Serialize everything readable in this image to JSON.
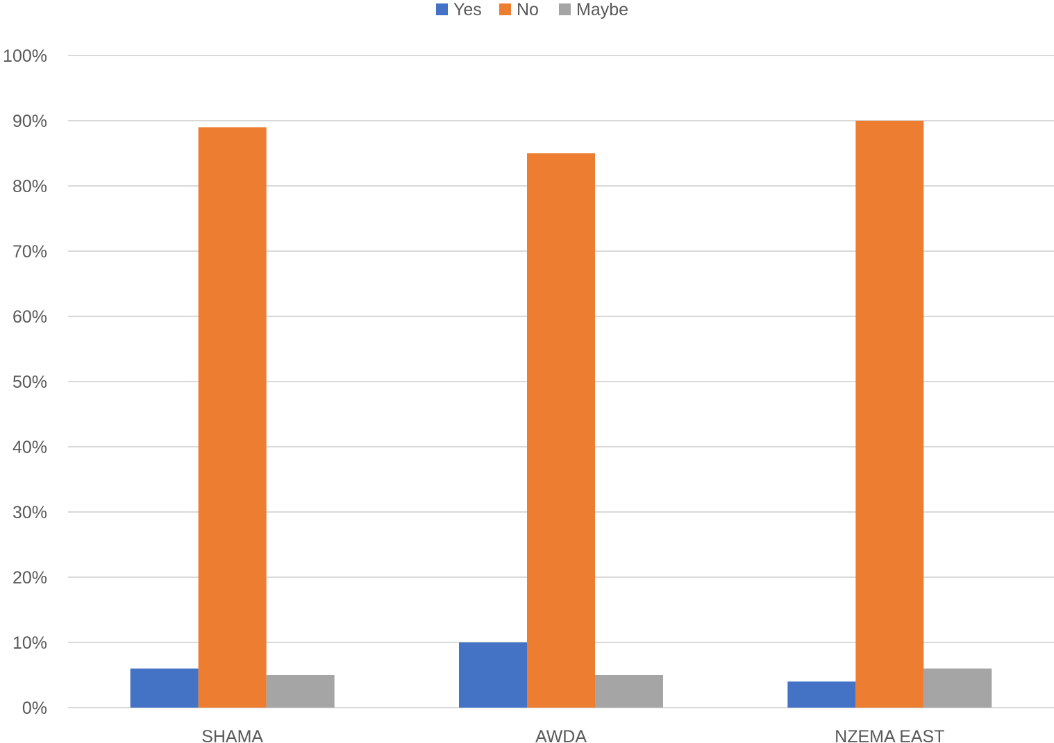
{
  "chart_data": {
    "type": "bar",
    "title": "",
    "xlabel": "",
    "ylabel": "",
    "categories": [
      "SHAMA",
      "AWDA",
      "NZEMA EAST"
    ],
    "series": [
      {
        "name": "Yes",
        "values": [
          0.06,
          0.1,
          0.04
        ],
        "color": "#4472C4"
      },
      {
        "name": "No",
        "values": [
          0.89,
          0.85,
          0.9
        ],
        "color": "#ED7D31"
      },
      {
        "name": "Maybe",
        "values": [
          0.05,
          0.05,
          0.06
        ],
        "color": "#A5A5A5"
      }
    ],
    "ylim": [
      0,
      1
    ],
    "yticks": [
      0,
      0.1,
      0.2,
      0.3,
      0.4,
      0.5,
      0.6,
      0.7,
      0.8,
      0.9,
      1.0
    ],
    "ytick_labels": [
      "0%",
      "10%",
      "20%",
      "30%",
      "40%",
      "50%",
      "60%",
      "70%",
      "80%",
      "90%",
      "100%"
    ],
    "grid": true,
    "grid_color": "#D9D9D9",
    "legend_position": "top-center"
  }
}
